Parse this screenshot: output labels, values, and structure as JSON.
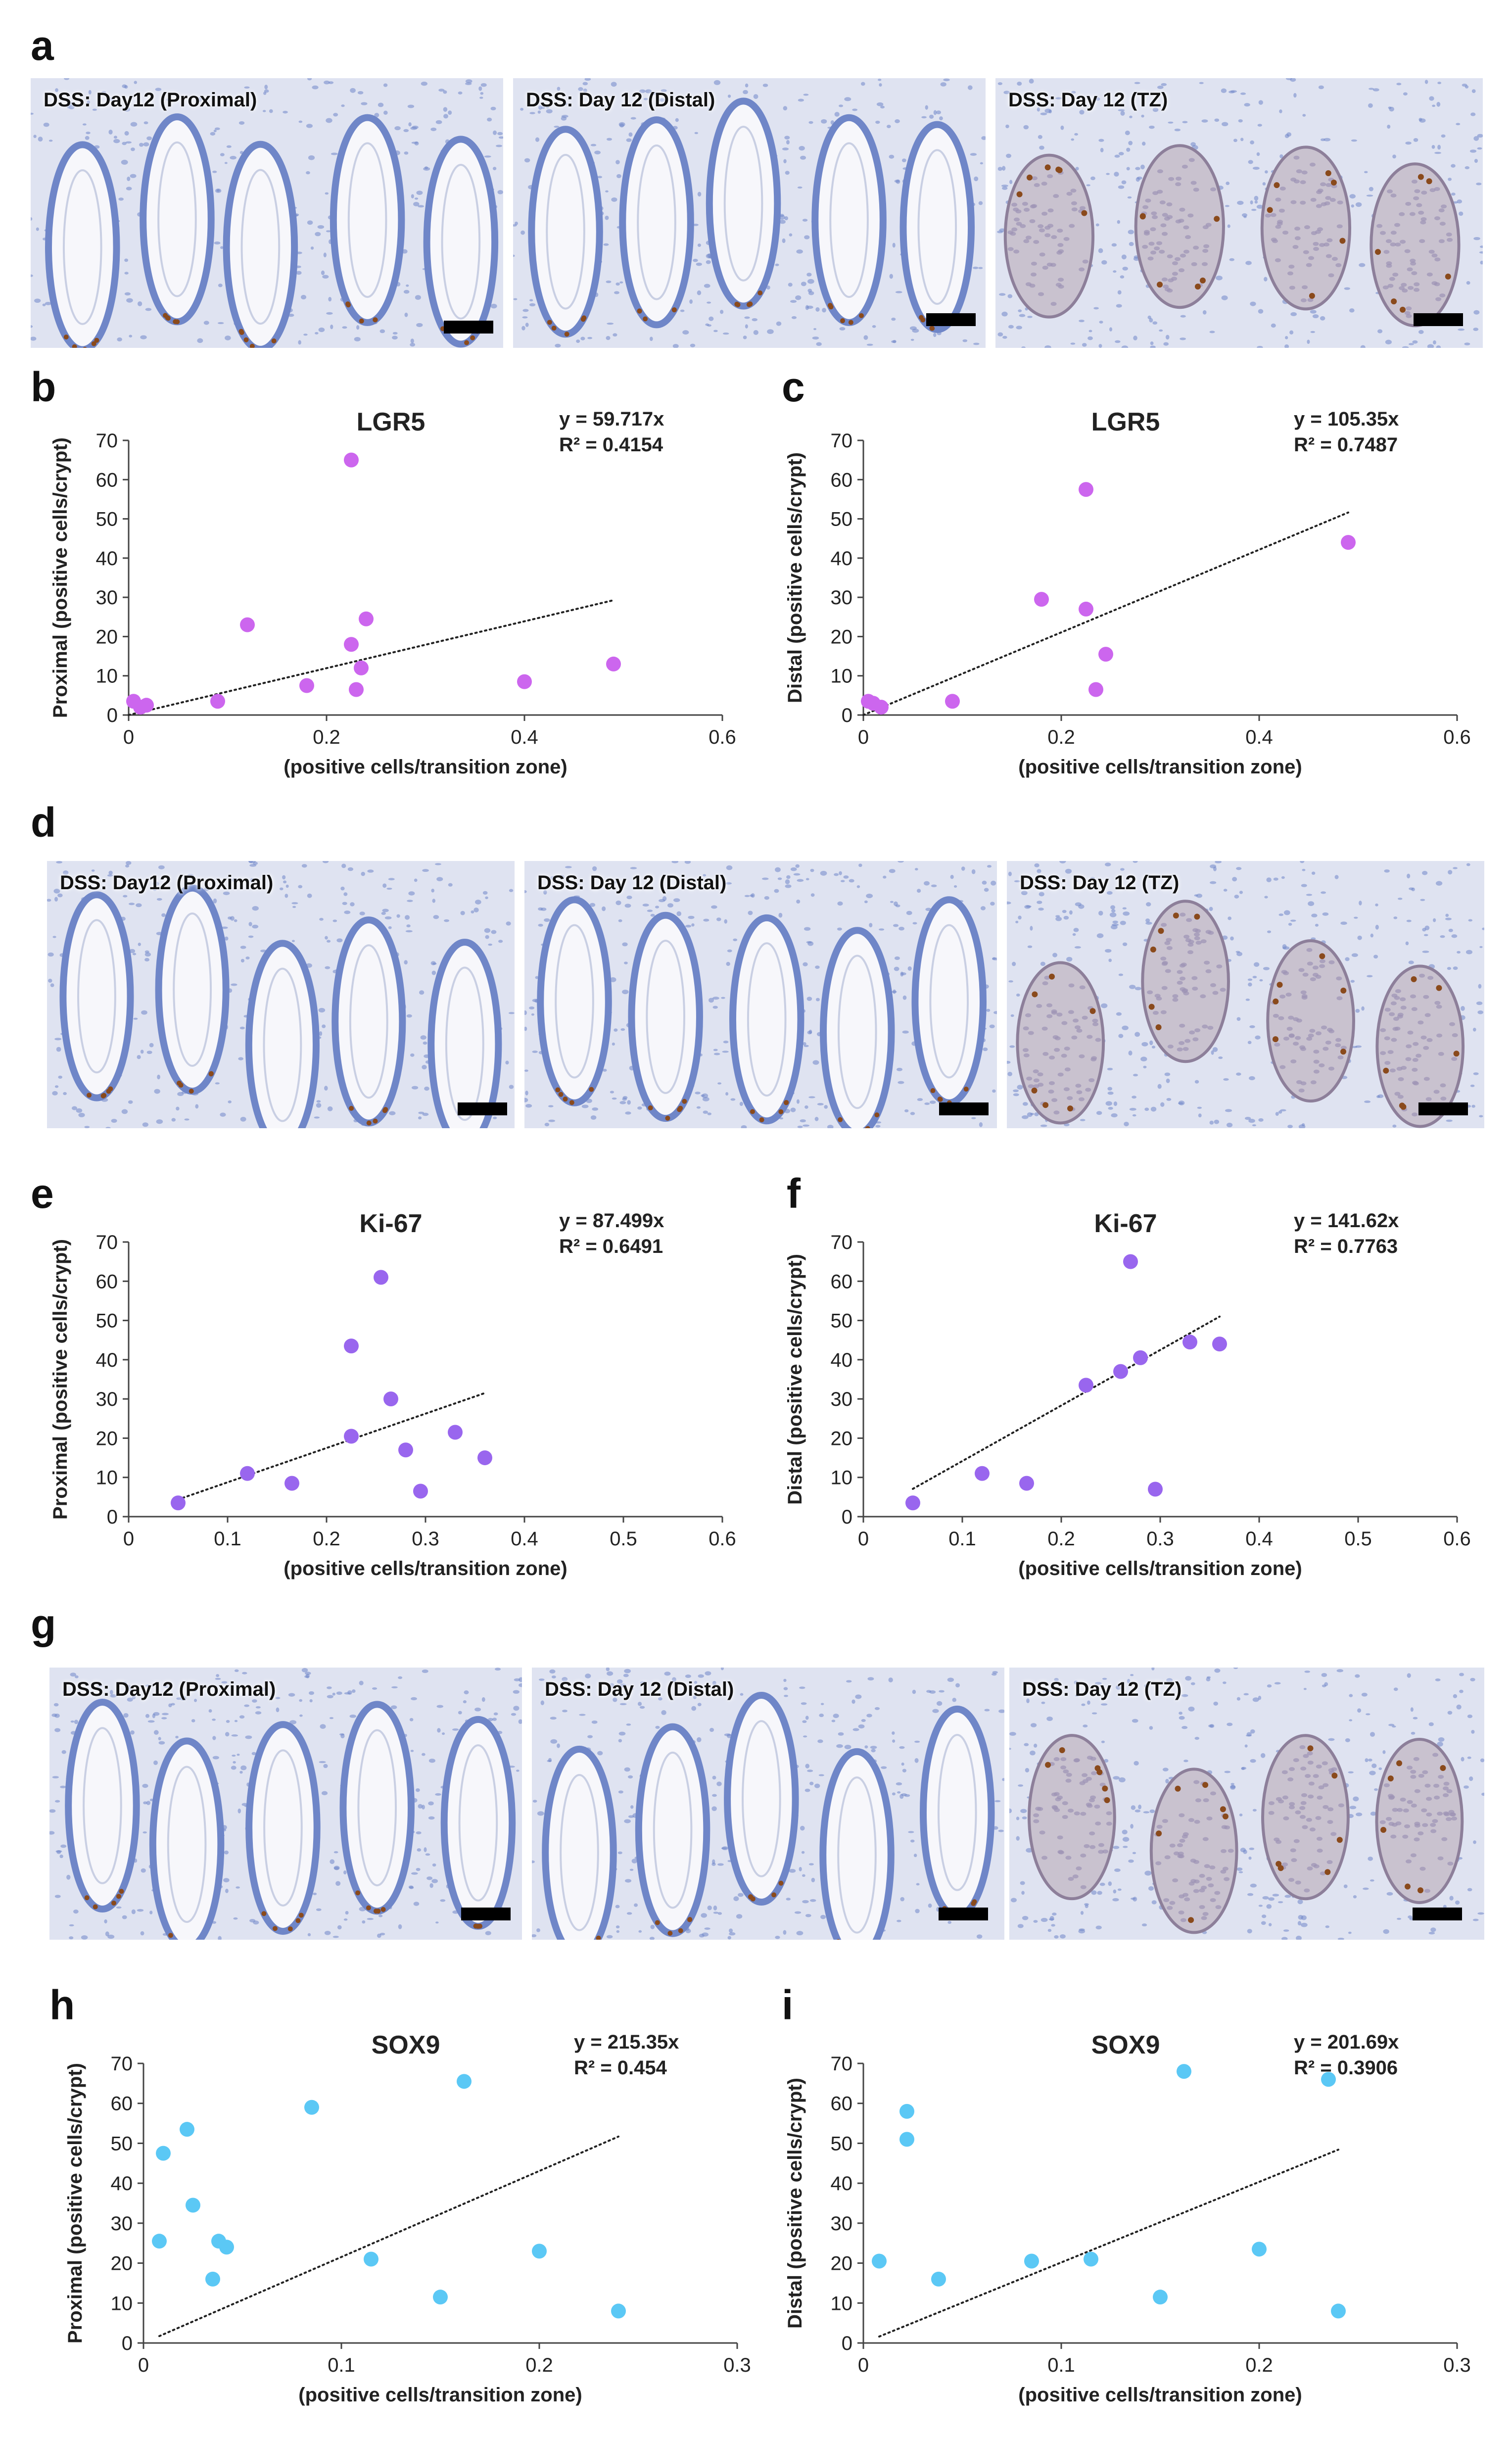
{
  "figure": {
    "rows": [
      {
        "letter": "a",
        "images": [
          {
            "label": "DSS: Day12 (Proximal)",
            "tissue": "proximal"
          },
          {
            "label": "DSS: Day 12 (Distal)",
            "tissue": "distal"
          },
          {
            "label": "DSS: Day 12 (TZ)",
            "tissue": "tz"
          }
        ]
      },
      {
        "letter": "d",
        "images": [
          {
            "label": "DSS: Day12 (Proximal)",
            "tissue": "proximal"
          },
          {
            "label": "DSS: Day 12 (Distal)",
            "tissue": "distal"
          },
          {
            "label": "DSS: Day 12 (TZ)",
            "tissue": "tz"
          }
        ]
      },
      {
        "letter": "g",
        "images": [
          {
            "label": "DSS: Day12 (Proximal)",
            "tissue": "proximal"
          },
          {
            "label": "DSS: Day 12 (Distal)",
            "tissue": "distal"
          },
          {
            "label": "DSS: Day 12 (TZ)",
            "tissue": "tz"
          }
        ]
      }
    ],
    "colors": {
      "lgr5": "#cc66ee",
      "ki67": "#9966ee",
      "sox9": "#5bc8f5",
      "stain_blue": "#6f86c8",
      "stain_brown": "#8a4a1c"
    }
  },
  "chart_data": [
    {
      "panel": "b",
      "type": "scatter",
      "title": "LGR5",
      "equation": "y = 59.717x",
      "r2": "R² = 0.4154",
      "xlabel": "(positive cells/transition zone)",
      "ylabel": "Proximal (positive cells/crypt)",
      "xlim": [
        0,
        0.6
      ],
      "ylim": [
        0,
        70
      ],
      "xticks": [
        "0",
        "0.2",
        "0.4",
        "0.6"
      ],
      "yticks": [
        "0",
        "10",
        "20",
        "30",
        "40",
        "50",
        "60",
        "70"
      ],
      "xtick_values": [
        0,
        0.2,
        0.4,
        0.6
      ],
      "ytick_values": [
        0,
        10,
        20,
        30,
        40,
        50,
        60,
        70
      ],
      "trend_slope": 59.717,
      "trend_x": [
        0,
        0.49
      ],
      "color": "#cc66ee",
      "points": [
        [
          0.005,
          3.5
        ],
        [
          0.012,
          2
        ],
        [
          0.018,
          2.5
        ],
        [
          0.09,
          3.5
        ],
        [
          0.12,
          23
        ],
        [
          0.18,
          7.5
        ],
        [
          0.225,
          65
        ],
        [
          0.225,
          18
        ],
        [
          0.23,
          6.5
        ],
        [
          0.235,
          12
        ],
        [
          0.24,
          24.5
        ],
        [
          0.4,
          8.5
        ],
        [
          0.49,
          13
        ]
      ]
    },
    {
      "panel": "c",
      "type": "scatter",
      "title": "LGR5",
      "equation": "y = 105.35x",
      "r2": "R² = 0.7487",
      "xlabel": "(positive cells/transition zone)",
      "ylabel": "Distal (positive cells/crypt)",
      "xlim": [
        0,
        0.6
      ],
      "ylim": [
        0,
        70
      ],
      "xticks": [
        "0",
        "0.2",
        "0.4",
        "0.6"
      ],
      "yticks": [
        "0",
        "10",
        "20",
        "30",
        "40",
        "50",
        "60",
        "70"
      ],
      "xtick_values": [
        0,
        0.2,
        0.4,
        0.6
      ],
      "ytick_values": [
        0,
        10,
        20,
        30,
        40,
        50,
        60,
        70
      ],
      "trend_slope": 105.35,
      "trend_x": [
        0,
        0.49
      ],
      "color": "#cc66ee",
      "points": [
        [
          0.005,
          3.5
        ],
        [
          0.01,
          3
        ],
        [
          0.018,
          2
        ],
        [
          0.09,
          3.5
        ],
        [
          0.18,
          29.5
        ],
        [
          0.225,
          57.5
        ],
        [
          0.225,
          27
        ],
        [
          0.235,
          6.5
        ],
        [
          0.245,
          15.5
        ],
        [
          0.49,
          44
        ]
      ]
    },
    {
      "panel": "e",
      "type": "scatter",
      "title": "Ki-67",
      "equation": "y = 87.499x",
      "r2": "R² = 0.6491",
      "xlabel": "(positive cells/transition zone)",
      "ylabel": "Proximal (positive cells/crypt)",
      "xlim": [
        0,
        0.6
      ],
      "ylim": [
        0,
        70
      ],
      "xticks": [
        "0",
        "0.1",
        "0.2",
        "0.3",
        "0.4",
        "0.5",
        "0.6"
      ],
      "yticks": [
        "0",
        "10",
        "20",
        "30",
        "40",
        "50",
        "60",
        "70"
      ],
      "xtick_values": [
        0,
        0.1,
        0.2,
        0.3,
        0.4,
        0.5,
        0.6
      ],
      "ytick_values": [
        0,
        10,
        20,
        30,
        40,
        50,
        60,
        70
      ],
      "trend_slope": 87.499,
      "trend_x": [
        0.05,
        0.36
      ],
      "color": "#9966ee",
      "points": [
        [
          0.05,
          3.5
        ],
        [
          0.12,
          11
        ],
        [
          0.165,
          8.5
        ],
        [
          0.225,
          43.5
        ],
        [
          0.225,
          20.5
        ],
        [
          0.255,
          61
        ],
        [
          0.265,
          30
        ],
        [
          0.28,
          17
        ],
        [
          0.295,
          6.5
        ],
        [
          0.33,
          21.5
        ],
        [
          0.36,
          15
        ]
      ]
    },
    {
      "panel": "f",
      "type": "scatter",
      "title": "Ki-67",
      "equation": "y = 141.62x",
      "r2": "R² = 0.7763",
      "xlabel": "(positive cells/transition zone)",
      "ylabel": "Distal (positive cells/crypt)",
      "xlim": [
        0,
        0.6
      ],
      "ylim": [
        0,
        70
      ],
      "xticks": [
        "0",
        "0.1",
        "0.2",
        "0.3",
        "0.4",
        "0.5",
        "0.6"
      ],
      "yticks": [
        "0",
        "10",
        "20",
        "30",
        "40",
        "50",
        "60",
        "70"
      ],
      "xtick_values": [
        0,
        0.1,
        0.2,
        0.3,
        0.4,
        0.5,
        0.6
      ],
      "ytick_values": [
        0,
        10,
        20,
        30,
        40,
        50,
        60,
        70
      ],
      "trend_slope": 141.62,
      "trend_x": [
        0.05,
        0.36
      ],
      "color": "#9966ee",
      "points": [
        [
          0.05,
          3.5
        ],
        [
          0.12,
          11
        ],
        [
          0.165,
          8.5
        ],
        [
          0.225,
          33.5
        ],
        [
          0.26,
          37
        ],
        [
          0.27,
          65
        ],
        [
          0.28,
          40.5
        ],
        [
          0.295,
          7
        ],
        [
          0.33,
          44.5
        ],
        [
          0.36,
          44
        ]
      ]
    },
    {
      "panel": "h",
      "type": "scatter",
      "title": "SOX9",
      "equation": "y = 215.35x",
      "r2": "R² = 0.454",
      "xlabel": "(positive cells/transition zone)",
      "ylabel": "Proximal (positive cells/crypt)",
      "xlim": [
        0,
        0.3
      ],
      "ylim": [
        0,
        70
      ],
      "xticks": [
        "0",
        "0.1",
        "0.2",
        "0.3"
      ],
      "yticks": [
        "0",
        "10",
        "20",
        "30",
        "40",
        "50",
        "60",
        "70"
      ],
      "xtick_values": [
        0,
        0.1,
        0.2,
        0.3
      ],
      "ytick_values": [
        0,
        10,
        20,
        30,
        40,
        50,
        60,
        70
      ],
      "trend_slope": 215.35,
      "trend_x": [
        0.008,
        0.24
      ],
      "color": "#5bc8f5",
      "points": [
        [
          0.008,
          25.5
        ],
        [
          0.01,
          47.5
        ],
        [
          0.022,
          53.5
        ],
        [
          0.025,
          34.5
        ],
        [
          0.035,
          16
        ],
        [
          0.038,
          25.5
        ],
        [
          0.042,
          24
        ],
        [
          0.085,
          59
        ],
        [
          0.115,
          21
        ],
        [
          0.15,
          11.5
        ],
        [
          0.162,
          65.5
        ],
        [
          0.2,
          23
        ],
        [
          0.24,
          8
        ]
      ]
    },
    {
      "panel": "i",
      "type": "scatter",
      "title": "SOX9",
      "equation": "y = 201.69x",
      "r2": "R² = 0.3906",
      "xlabel": "(positive cells/transition zone)",
      "ylabel": "Distal (positive cells/crypt)",
      "xlim": [
        0,
        0.3
      ],
      "ylim": [
        0,
        70
      ],
      "xticks": [
        "0",
        "0.1",
        "0.2",
        "0.3"
      ],
      "yticks": [
        "0",
        "10",
        "20",
        "30",
        "40",
        "50",
        "60",
        "70"
      ],
      "xtick_values": [
        0,
        0.1,
        0.2,
        0.3
      ],
      "ytick_values": [
        0,
        10,
        20,
        30,
        40,
        50,
        60,
        70
      ],
      "trend_slope": 201.69,
      "trend_x": [
        0.008,
        0.24
      ],
      "color": "#5bc8f5",
      "points": [
        [
          0.008,
          20.5
        ],
        [
          0.022,
          58
        ],
        [
          0.022,
          51
        ],
        [
          0.038,
          16
        ],
        [
          0.085,
          20.5
        ],
        [
          0.115,
          21
        ],
        [
          0.15,
          11.5
        ],
        [
          0.162,
          68
        ],
        [
          0.2,
          23.5
        ],
        [
          0.235,
          66
        ],
        [
          0.24,
          8
        ]
      ]
    }
  ]
}
